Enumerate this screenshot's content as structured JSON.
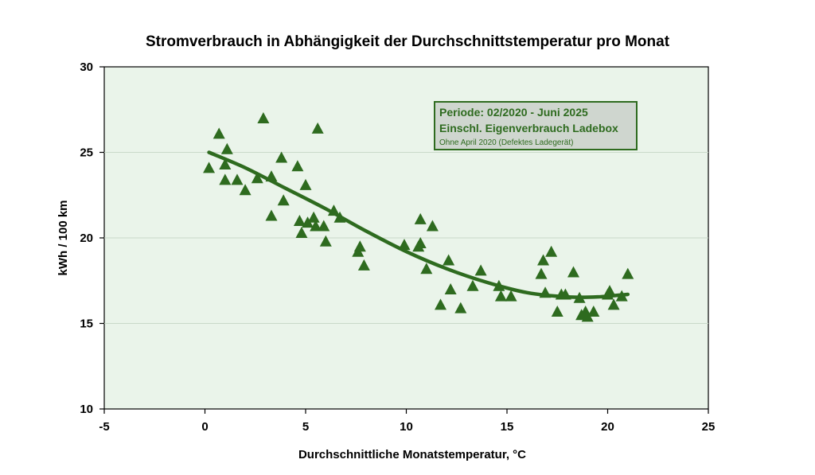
{
  "chart_data": {
    "type": "scatter",
    "title": "Stromverbrauch in Abhängigkeit der Durchschnittstemperatur pro Monat",
    "xlabel": "Durchschnittliche Monatstemperatur, °C",
    "ylabel": "kWh / 100 km",
    "xlim": [
      -5,
      25
    ],
    "ylim": [
      10,
      30
    ],
    "x_ticks": [
      -5,
      0,
      5,
      10,
      15,
      20,
      25
    ],
    "y_ticks": [
      10,
      15,
      20,
      25,
      30
    ],
    "x_tick_labels": [
      "-5",
      "0",
      "5",
      "10",
      "15",
      "20",
      "25"
    ],
    "y_tick_labels": [
      "10",
      "15",
      "20",
      "25",
      "30"
    ],
    "grid": "horizontal",
    "marker": "triangle",
    "color": "#2e6b1f",
    "background": "#eaf4ea",
    "legend_box": {
      "placement": "top-right",
      "lines": [
        "Periode: 02/2020 - Juni 2025",
        "Einschl. Eigenverbrauch Ladebox",
        "Ohne April 2020 (Defektes Ladegerät)"
      ]
    },
    "points": [
      [
        0.2,
        24.1
      ],
      [
        0.7,
        26.1
      ],
      [
        1.0,
        24.3
      ],
      [
        1.1,
        25.2
      ],
      [
        1.0,
        23.4
      ],
      [
        1.6,
        23.4
      ],
      [
        2.0,
        22.8
      ],
      [
        2.6,
        23.5
      ],
      [
        2.9,
        27.0
      ],
      [
        3.3,
        23.6
      ],
      [
        3.3,
        21.3
      ],
      [
        3.8,
        24.7
      ],
      [
        3.9,
        22.2
      ],
      [
        4.6,
        24.2
      ],
      [
        4.7,
        21.0
      ],
      [
        4.8,
        20.3
      ],
      [
        5.0,
        23.1
      ],
      [
        5.1,
        20.9
      ],
      [
        5.4,
        21.2
      ],
      [
        5.5,
        20.7
      ],
      [
        5.6,
        26.4
      ],
      [
        5.9,
        20.7
      ],
      [
        6.0,
        19.8
      ],
      [
        6.4,
        21.6
      ],
      [
        6.7,
        21.2
      ],
      [
        7.6,
        19.2
      ],
      [
        7.7,
        19.5
      ],
      [
        7.9,
        18.4
      ],
      [
        9.9,
        19.6
      ],
      [
        10.6,
        19.5
      ],
      [
        10.7,
        19.7
      ],
      [
        10.7,
        21.1
      ],
      [
        11.0,
        18.2
      ],
      [
        11.3,
        20.7
      ],
      [
        11.7,
        16.1
      ],
      [
        12.1,
        18.7
      ],
      [
        12.2,
        17.0
      ],
      [
        12.7,
        15.9
      ],
      [
        13.3,
        17.2
      ],
      [
        13.7,
        18.1
      ],
      [
        14.6,
        17.2
      ],
      [
        14.7,
        16.6
      ],
      [
        15.2,
        16.6
      ],
      [
        16.7,
        17.9
      ],
      [
        16.8,
        18.7
      ],
      [
        16.9,
        16.8
      ],
      [
        17.2,
        19.2
      ],
      [
        17.5,
        15.7
      ],
      [
        17.7,
        16.7
      ],
      [
        17.9,
        16.7
      ],
      [
        18.3,
        18.0
      ],
      [
        18.6,
        16.5
      ],
      [
        18.7,
        15.5
      ],
      [
        18.9,
        15.7
      ],
      [
        19.0,
        15.4
      ],
      [
        19.3,
        15.7
      ],
      [
        20.0,
        16.7
      ],
      [
        20.1,
        16.9
      ],
      [
        20.3,
        16.1
      ],
      [
        20.7,
        16.6
      ],
      [
        21.0,
        17.9
      ]
    ],
    "trendline": {
      "type": "polynomial",
      "x_range": [
        0.2,
        21.0
      ],
      "points": [
        [
          0.2,
          25.0
        ],
        [
          2.0,
          24.1
        ],
        [
          4.0,
          22.9
        ],
        [
          6.0,
          21.7
        ],
        [
          8.0,
          20.4
        ],
        [
          10.0,
          19.2
        ],
        [
          12.0,
          18.2
        ],
        [
          14.0,
          17.4
        ],
        [
          16.0,
          16.8
        ],
        [
          18.0,
          16.55
        ],
        [
          19.5,
          16.55
        ],
        [
          21.0,
          16.7
        ]
      ]
    }
  }
}
